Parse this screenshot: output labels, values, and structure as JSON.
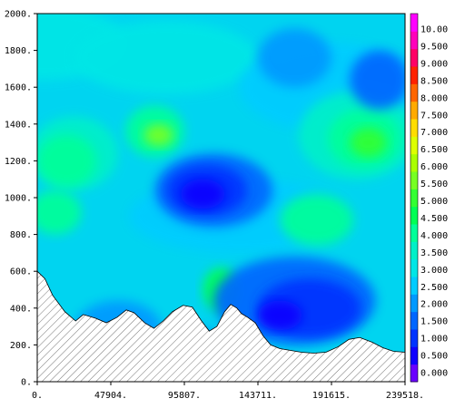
{
  "chart_data": {
    "type": "heatmap",
    "title": "",
    "xlabel": "",
    "ylabel": "",
    "xlim": [
      0,
      239518
    ],
    "ylim": [
      0,
      2000
    ],
    "x_ticks": [
      "0.",
      "47904.",
      "95807.",
      "143711.",
      "191615.",
      "239518."
    ],
    "y_ticks": [
      "0.",
      "200.",
      "400.",
      "600.",
      "800.",
      "1000.",
      "1200.",
      "1400.",
      "1600.",
      "1800.",
      "2000."
    ],
    "x_tick_values": [
      0,
      47904,
      95807,
      143711,
      191615,
      239518
    ],
    "y_tick_values": [
      0,
      200,
      400,
      600,
      800,
      1000,
      1200,
      1400,
      1600,
      1800,
      2000
    ],
    "colorbar": {
      "labels": [
        "0.000",
        "0.500",
        "1.000",
        "1.500",
        "2.000",
        "2.500",
        "3.000",
        "3.500",
        "4.000",
        "4.500",
        "5.000",
        "5.500",
        "6.000",
        "6.500",
        "7.000",
        "7.500",
        "8.000",
        "8.500",
        "9.000",
        "9.500",
        "10.00"
      ],
      "colors": [
        "#6a00ff",
        "#1000ff",
        "#0033ff",
        "#0066ff",
        "#0099ff",
        "#00ccff",
        "#00e6e6",
        "#00f0c8",
        "#00ff99",
        "#00ff55",
        "#33ff33",
        "#77ff22",
        "#aaff00",
        "#ddff00",
        "#ffdd00",
        "#ffaa00",
        "#ff6600",
        "#ff2200",
        "#ff0066",
        "#ff00bb",
        "#ff00ff"
      ]
    },
    "terrain": {
      "hatched": true,
      "profile": [
        [
          0,
          600
        ],
        [
          5000,
          560
        ],
        [
          10000,
          470
        ],
        [
          18000,
          380
        ],
        [
          25000,
          330
        ],
        [
          30000,
          365
        ],
        [
          38000,
          345
        ],
        [
          45000,
          320
        ],
        [
          52000,
          350
        ],
        [
          58000,
          390
        ],
        [
          63000,
          375
        ],
        [
          70000,
          320
        ],
        [
          76000,
          290
        ],
        [
          82000,
          330
        ],
        [
          88000,
          380
        ],
        [
          95000,
          415
        ],
        [
          101000,
          405
        ],
        [
          107000,
          330
        ],
        [
          112000,
          275
        ],
        [
          117000,
          300
        ],
        [
          122000,
          380
        ],
        [
          126000,
          420
        ],
        [
          130000,
          400
        ],
        [
          133000,
          370
        ],
        [
          137000,
          350
        ],
        [
          142000,
          320
        ],
        [
          147000,
          250
        ],
        [
          152000,
          200
        ],
        [
          158000,
          180
        ],
        [
          165000,
          170
        ],
        [
          172000,
          160
        ],
        [
          180000,
          155
        ],
        [
          188000,
          160
        ],
        [
          196000,
          190
        ],
        [
          203000,
          230
        ],
        [
          210000,
          240
        ],
        [
          218000,
          215
        ],
        [
          225000,
          185
        ],
        [
          232000,
          165
        ],
        [
          239518,
          160
        ]
      ]
    }
  }
}
